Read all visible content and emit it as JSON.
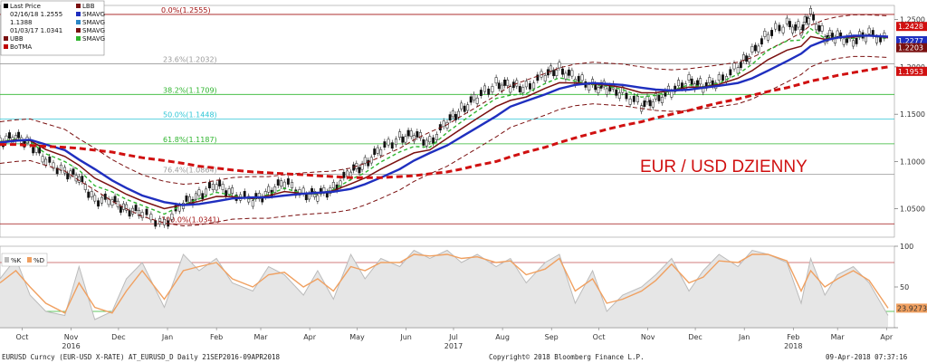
{
  "legend": {
    "items": [
      {
        "label": "Last Price",
        "swatch": "#000000"
      },
      {
        "label": "02/16/18 1.2555",
        "swatch": ""
      },
      {
        "label": "1.1388",
        "swatch": ""
      },
      {
        "label": "01/03/17 1.0341",
        "swatch": ""
      },
      {
        "label": "UBB",
        "swatch": "#7a1010"
      },
      {
        "label": "BoTMA",
        "swatch": "#c00000"
      }
    ],
    "items_right": [
      {
        "label": "LBB",
        "swatch": "#7a1010"
      },
      {
        "label": "SMAVG",
        "swatch": "#1f2fbf"
      },
      {
        "label": "SMAVG",
        "swatch": "#2b86c5"
      },
      {
        "label": "SMAVG",
        "swatch": "#7a1010"
      },
      {
        "label": "SMAVG",
        "swatch": "#2fb52f"
      }
    ]
  },
  "annotation": "EUR / USD DZIENNY",
  "osc_legend": [
    "%K",
    "%D"
  ],
  "footer": {
    "left": "EURUSD Curncy (EUR-USD X-RATE) AT_EURUSD_D  Daily 21SEP2016-09APR2018",
    "center": "Copyright© 2018 Bloomberg Finance L.P.",
    "right": "09-Apr-2018 07:37:16"
  },
  "colors": {
    "price": "#111111",
    "bollinger": "#7a1010",
    "sma_short": "#2fb52f",
    "sma_mid": "#7a1010",
    "sma_long": "#1f2fbf",
    "sma_200": "#d01010",
    "osc_k": "#bbbbbb",
    "osc_d": "#f0a060"
  },
  "chart_data": [
    {
      "type": "line",
      "ylim": [
        1.02,
        1.265
      ],
      "yticks": [
        1.05,
        1.1,
        1.15,
        1.2,
        1.25
      ],
      "ytick_labels": [
        "1.0500",
        "1.1000",
        "1.1500",
        "1.2000",
        "1.2500"
      ],
      "x": [
        "2016-09-21",
        "2016-10-01",
        "2016-10-10",
        "2016-10-20",
        "2016-11-01",
        "2016-11-10",
        "2016-11-20",
        "2016-12-01",
        "2016-12-10",
        "2016-12-20",
        "2017-01-03",
        "2017-01-15",
        "2017-01-25",
        "2017-02-05",
        "2017-02-15",
        "2017-02-28",
        "2017-03-10",
        "2017-03-20",
        "2017-04-01",
        "2017-04-10",
        "2017-04-20",
        "2017-05-01",
        "2017-05-10",
        "2017-05-20",
        "2017-06-01",
        "2017-06-10",
        "2017-06-20",
        "2017-07-01",
        "2017-07-10",
        "2017-07-20",
        "2017-08-01",
        "2017-08-10",
        "2017-08-20",
        "2017-09-01",
        "2017-09-10",
        "2017-09-20",
        "2017-10-01",
        "2017-10-10",
        "2017-10-20",
        "2017-11-01",
        "2017-11-10",
        "2017-11-20",
        "2017-12-01",
        "2017-12-10",
        "2017-12-20",
        "2018-01-01",
        "2018-01-10",
        "2018-01-20",
        "2018-02-01",
        "2018-02-10",
        "2018-02-16",
        "2018-02-25",
        "2018-03-05",
        "2018-03-15",
        "2018-03-25",
        "2018-04-06"
      ],
      "series": [
        {
          "name": "Last Price",
          "values": [
            1.122,
            1.125,
            1.12,
            1.1,
            1.09,
            1.082,
            1.06,
            1.058,
            1.05,
            1.045,
            1.0341,
            1.055,
            1.065,
            1.075,
            1.067,
            1.058,
            1.068,
            1.078,
            1.066,
            1.064,
            1.072,
            1.089,
            1.098,
            1.113,
            1.125,
            1.128,
            1.12,
            1.142,
            1.155,
            1.168,
            1.182,
            1.18,
            1.178,
            1.192,
            1.198,
            1.188,
            1.18,
            1.178,
            1.172,
            1.16,
            1.165,
            1.175,
            1.185,
            1.18,
            1.185,
            1.2,
            1.215,
            1.235,
            1.245,
            1.24,
            1.2555,
            1.232,
            1.232,
            1.228,
            1.235,
            1.2277
          ]
        },
        {
          "name": "SMAVG",
          "values": [
            1.12,
            1.122,
            1.123,
            1.118,
            1.112,
            1.102,
            1.092,
            1.08,
            1.072,
            1.064,
            1.057,
            1.054,
            1.055,
            1.058,
            1.061,
            1.062,
            1.062,
            1.064,
            1.066,
            1.067,
            1.068,
            1.071,
            1.076,
            1.083,
            1.092,
            1.101,
            1.109,
            1.117,
            1.126,
            1.136,
            1.148,
            1.158,
            1.164,
            1.171,
            1.177,
            1.181,
            1.183,
            1.182,
            1.181,
            1.178,
            1.176,
            1.175,
            1.176,
            1.178,
            1.18,
            1.183,
            1.188,
            1.196,
            1.206,
            1.214,
            1.222,
            1.228,
            1.231,
            1.233,
            1.233,
            1.232
          ]
        },
        {
          "name": "SMAVG 200",
          "values": [
            1.118,
            1.118,
            1.117,
            1.116,
            1.115,
            1.114,
            1.112,
            1.11,
            1.107,
            1.104,
            1.101,
            1.098,
            1.095,
            1.093,
            1.091,
            1.089,
            1.088,
            1.087,
            1.086,
            1.085,
            1.084,
            1.083,
            1.083,
            1.083,
            1.084,
            1.085,
            1.087,
            1.089,
            1.092,
            1.096,
            1.1,
            1.105,
            1.11,
            1.115,
            1.12,
            1.125,
            1.13,
            1.134,
            1.138,
            1.142,
            1.146,
            1.15,
            1.154,
            1.158,
            1.162,
            1.166,
            1.17,
            1.174,
            1.178,
            1.182,
            1.185,
            1.188,
            1.191,
            1.194,
            1.197,
            1.2
          ]
        }
      ],
      "price_labels": [
        {
          "value": 1.2428,
          "label": "1.2428",
          "color": "#d01010"
        },
        {
          "value": 1.2277,
          "label": "1.2277",
          "color": "#1f2fbf"
        },
        {
          "value": 1.2203,
          "label": "1.2203",
          "color": "#7a1010"
        },
        {
          "value": 1.1953,
          "label": "1.1953",
          "color": "#d01010"
        }
      ],
      "fibonacci": [
        {
          "label": "0.0%(1.2555)",
          "value": 1.2555,
          "color": "#a01010"
        },
        {
          "label": "23.6%(1.2032)",
          "value": 1.2032,
          "color": "#999999"
        },
        {
          "label": "38.2%(1.1709)",
          "value": 1.1709,
          "color": "#2fb52f"
        },
        {
          "label": "50.0%(1.1448)",
          "value": 1.1448,
          "color": "#2ec6d6"
        },
        {
          "label": "61.8%(1.1187)",
          "value": 1.1187,
          "color": "#2fb52f"
        },
        {
          "label": "76.4%(1.0864)",
          "value": 1.0864,
          "color": "#999999"
        },
        {
          "label": "100.0%(1.0341)",
          "value": 1.0341,
          "color": "#a01010"
        }
      ]
    },
    {
      "type": "line",
      "ylim": [
        0,
        100
      ],
      "yticks": [
        0,
        50,
        100
      ],
      "ytick_labels": [
        "",
        "50",
        "100"
      ],
      "hlines": [
        20,
        80
      ],
      "last_value": "23.9273",
      "series": [
        {
          "name": "%K",
          "values": [
            60,
            85,
            40,
            20,
            15,
            75,
            10,
            20,
            60,
            80,
            25,
            90,
            70,
            85,
            55,
            45,
            75,
            65,
            40,
            70,
            35,
            90,
            60,
            85,
            75,
            95,
            85,
            95,
            80,
            90,
            75,
            85,
            55,
            80,
            90,
            30,
            70,
            20,
            40,
            50,
            65,
            85,
            45,
            70,
            90,
            75,
            95,
            90,
            80,
            30,
            85,
            40,
            65,
            75,
            55,
            15
          ]
        },
        {
          "name": "%D",
          "values": [
            55,
            70,
            50,
            30,
            18,
            55,
            25,
            18,
            45,
            70,
            35,
            70,
            75,
            80,
            60,
            50,
            65,
            68,
            50,
            60,
            45,
            75,
            70,
            80,
            80,
            90,
            88,
            90,
            85,
            87,
            80,
            82,
            65,
            72,
            85,
            45,
            60,
            30,
            35,
            45,
            58,
            78,
            55,
            62,
            82,
            80,
            90,
            90,
            82,
            45,
            70,
            50,
            60,
            70,
            58,
            24
          ]
        }
      ]
    }
  ],
  "x_labels": {
    "months": [
      {
        "date": "2016-10-05",
        "label": "Oct"
      },
      {
        "date": "2016-11-05",
        "label": "Nov"
      },
      {
        "date": "2016-12-05",
        "label": "Dec"
      },
      {
        "date": "2017-01-05",
        "label": "Jan"
      },
      {
        "date": "2017-02-05",
        "label": "Feb"
      },
      {
        "date": "2017-03-05",
        "label": "Mar"
      },
      {
        "date": "2017-04-05",
        "label": "Apr"
      },
      {
        "date": "2017-05-05",
        "label": "May"
      },
      {
        "date": "2017-06-05",
        "label": "Jun"
      },
      {
        "date": "2017-07-05",
        "label": "Jul"
      },
      {
        "date": "2017-08-05",
        "label": "Aug"
      },
      {
        "date": "2017-09-05",
        "label": "Sep"
      },
      {
        "date": "2017-10-05",
        "label": "Oct"
      },
      {
        "date": "2017-11-05",
        "label": "Nov"
      },
      {
        "date": "2017-12-05",
        "label": "Dec"
      },
      {
        "date": "2018-01-05",
        "label": "Jan"
      },
      {
        "date": "2018-02-05",
        "label": "Feb"
      },
      {
        "date": "2018-03-05",
        "label": "Mar"
      },
      {
        "date": "2018-04-05",
        "label": "Apr"
      }
    ],
    "years": [
      {
        "date": "2016-11-05",
        "label": "2016"
      },
      {
        "date": "2017-07-05",
        "label": "2017"
      },
      {
        "date": "2018-02-05",
        "label": "2018"
      }
    ]
  }
}
